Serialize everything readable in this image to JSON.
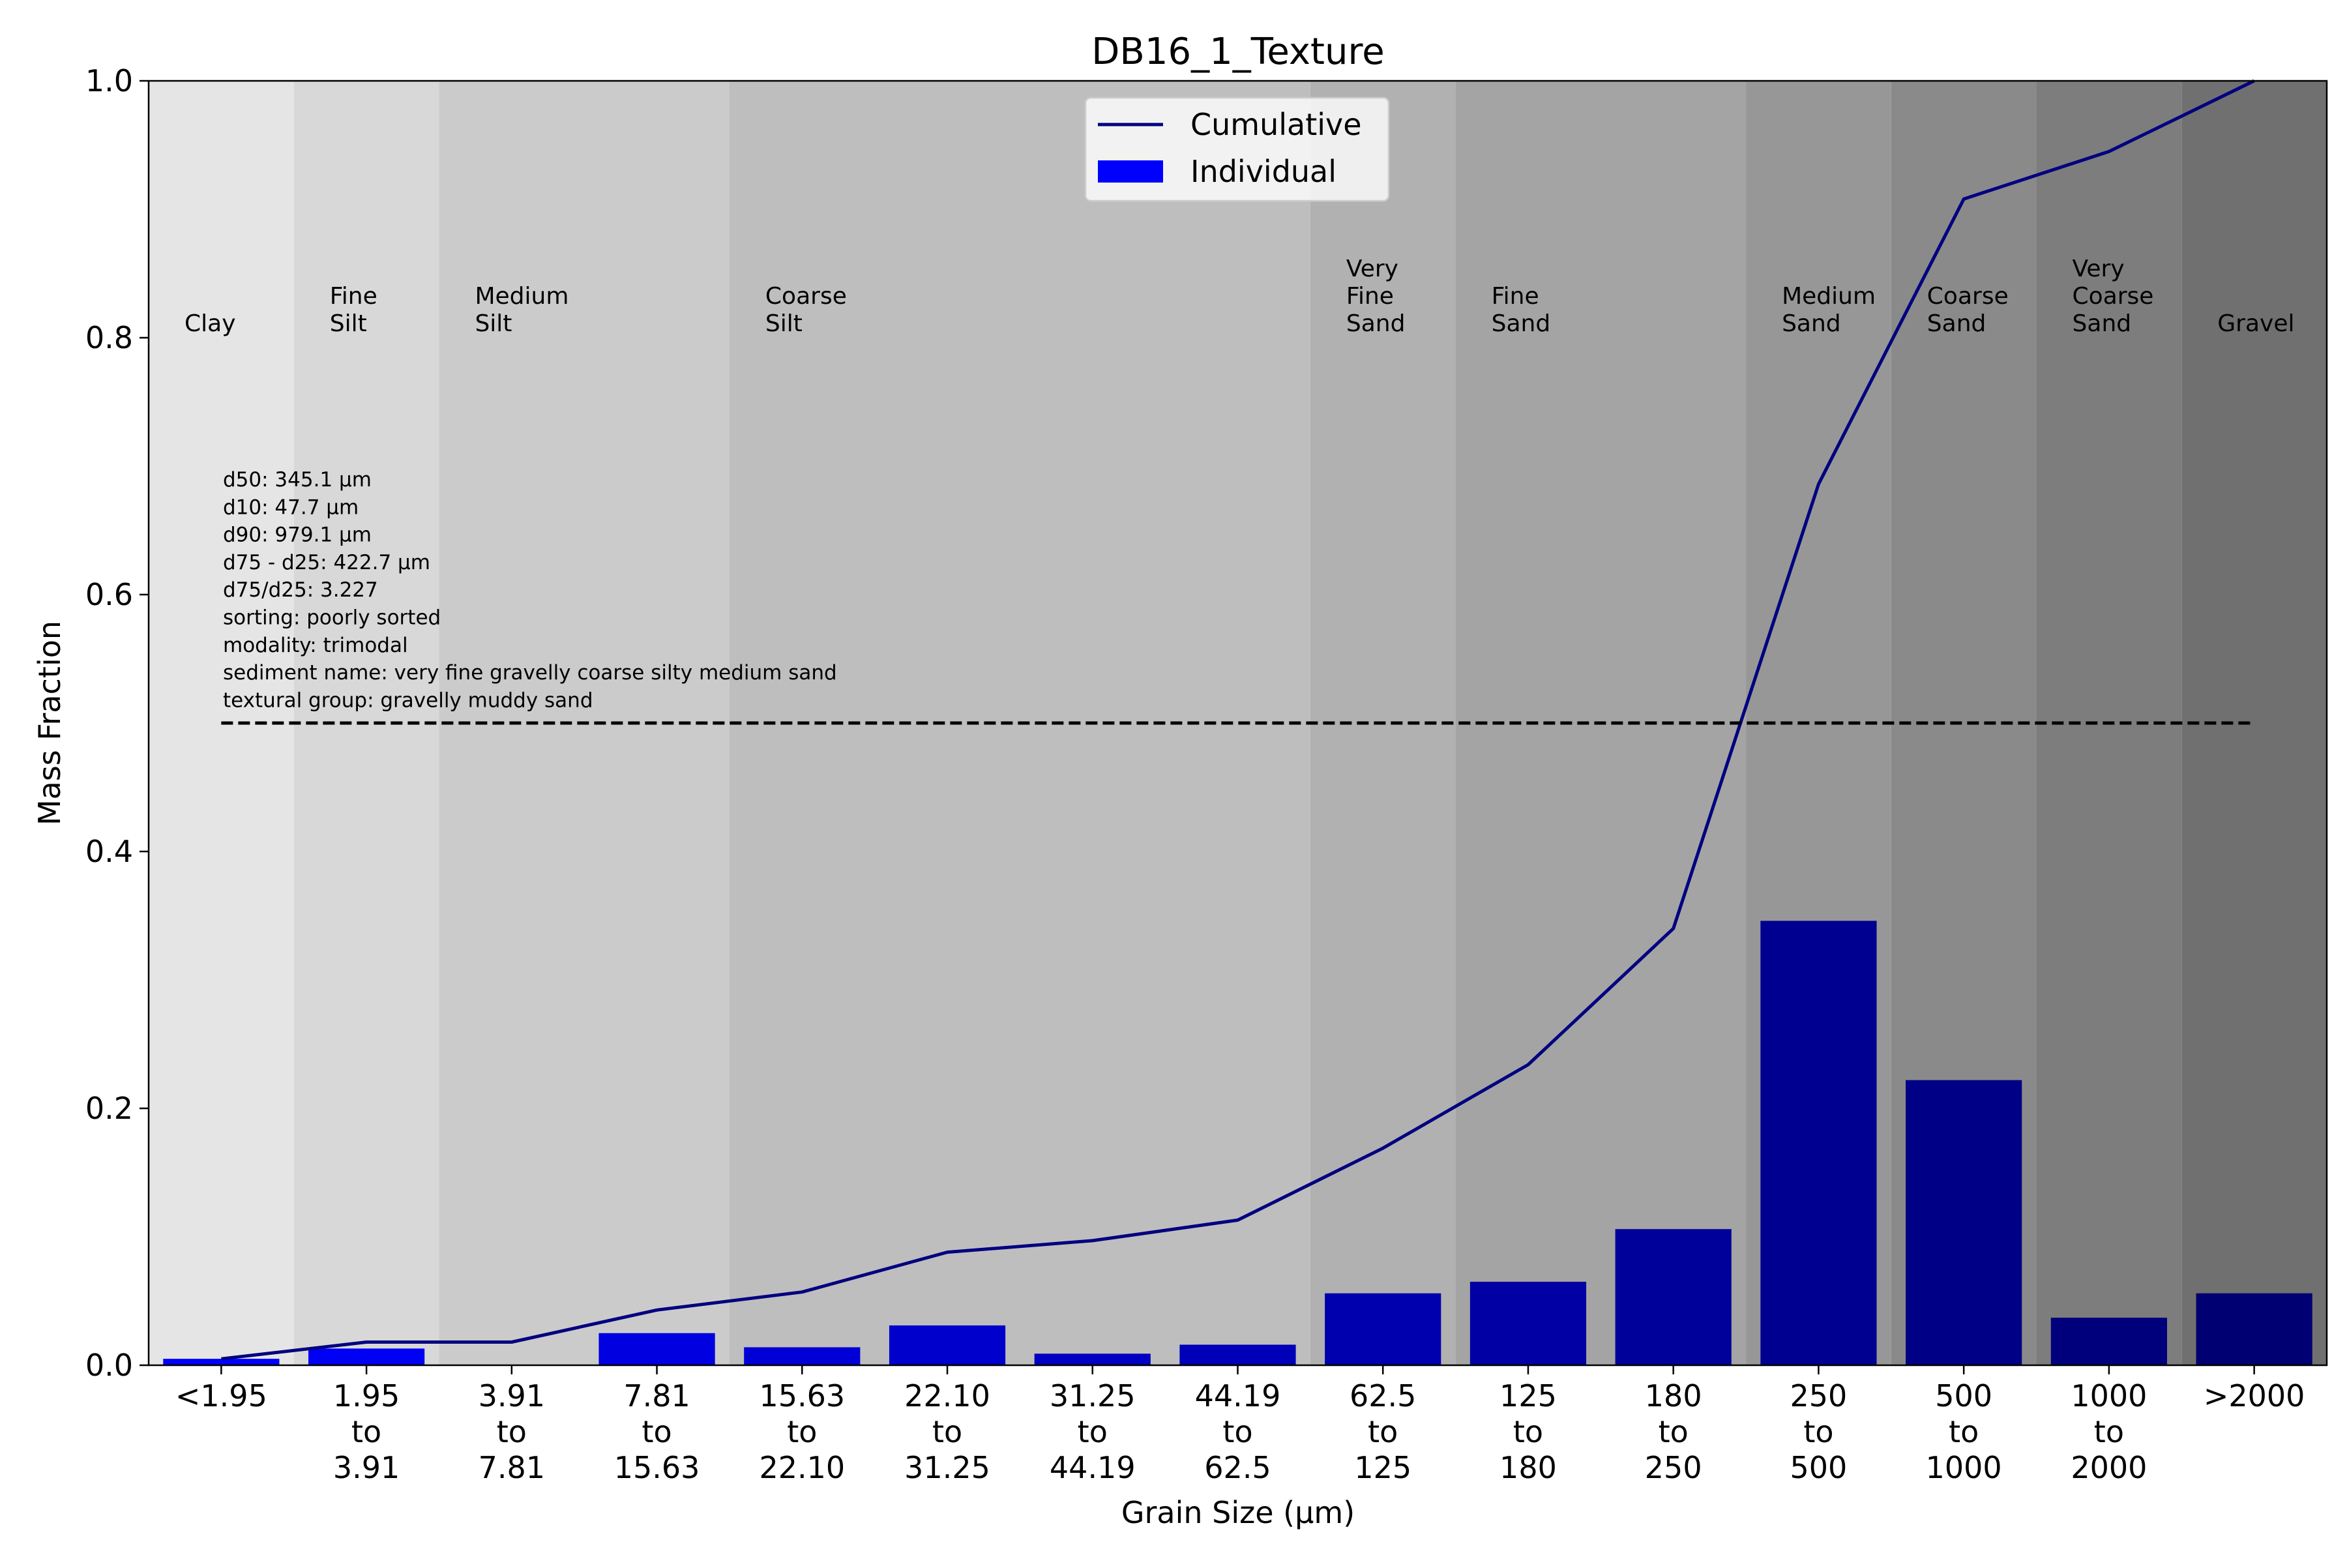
{
  "chart_data": {
    "type": "bar",
    "title": "DB16_1_Texture",
    "xlabel": "Grain Size (μm)",
    "ylabel": "Mass Fraction",
    "ylim": [
      0,
      1
    ],
    "yticks": [
      "0.0",
      "0.2",
      "0.4",
      "0.6",
      "0.8",
      "1.0"
    ],
    "categories": [
      [
        "<1.95"
      ],
      [
        "1.95",
        "to",
        "3.91"
      ],
      [
        "3.91",
        "to",
        "7.81"
      ],
      [
        "7.81",
        "to",
        "15.63"
      ],
      [
        "15.63",
        "to",
        "22.10"
      ],
      [
        "22.10",
        "to",
        "31.25"
      ],
      [
        "31.25",
        "to",
        "44.19"
      ],
      [
        "44.19",
        "to",
        "62.5"
      ],
      [
        "62.5",
        "to",
        "125"
      ],
      [
        "125",
        "to",
        "180"
      ],
      [
        "180",
        "to",
        "250"
      ],
      [
        "250",
        "to",
        "500"
      ],
      [
        "500",
        "to",
        "1000"
      ],
      [
        "1000",
        "to",
        "2000"
      ],
      [
        ">2000"
      ]
    ],
    "series": [
      {
        "name": "Individual",
        "kind": "bar",
        "values": [
          0.005,
          0.013,
          0.0,
          0.025,
          0.014,
          0.031,
          0.009,
          0.016,
          0.056,
          0.065,
          0.106,
          0.346,
          0.222,
          0.037,
          0.056
        ],
        "colors": [
          "#0000ff",
          "#0000f4",
          "#0000ea",
          "#0000e0",
          "#0000d6",
          "#0000cc",
          "#0000c2",
          "#0000b8",
          "#0000ae",
          "#0000a4",
          "#00009a",
          "#000090",
          "#000086",
          "#00007c",
          "#000072"
        ]
      },
      {
        "name": "Cumulative",
        "kind": "line",
        "color": "#000080",
        "values": [
          0.005,
          0.018,
          0.018,
          0.043,
          0.057,
          0.088,
          0.097,
          0.113,
          0.169,
          0.234,
          0.34,
          0.686,
          0.908,
          0.945,
          1.0
        ]
      }
    ],
    "reference_line": {
      "y": 0.5,
      "style": "dashed",
      "color": "#000000"
    },
    "legend": {
      "position": "top-center",
      "entries": [
        {
          "label": "Cumulative",
          "kind": "line",
          "color": "#000080"
        },
        {
          "label": "Individual",
          "kind": "patch",
          "color": "#0000ff"
        }
      ]
    },
    "bands": [
      {
        "lines": [
          "Clay"
        ],
        "from": 0,
        "to": 1,
        "color": "#e5e5e5"
      },
      {
        "lines": [
          "Fine",
          "Silt"
        ],
        "from": 1,
        "to": 2,
        "color": "#d8d8d8"
      },
      {
        "lines": [
          "Medium",
          "Silt"
        ],
        "from": 2,
        "to": 4,
        "color": "#cbcbcb"
      },
      {
        "lines": [
          "Coarse",
          "Silt"
        ],
        "from": 4,
        "to": 8,
        "color": "#bebebe"
      },
      {
        "lines": [
          "Very",
          "Fine",
          "Sand"
        ],
        "from": 8,
        "to": 9,
        "color": "#b1b1b1"
      },
      {
        "lines": [
          "Fine",
          "Sand"
        ],
        "from": 9,
        "to": 11,
        "color": "#a4a4a4"
      },
      {
        "lines": [
          "Medium",
          "Sand"
        ],
        "from": 11,
        "to": 12,
        "color": "#979797"
      },
      {
        "lines": [
          "Coarse",
          "Sand"
        ],
        "from": 12,
        "to": 13,
        "color": "#8a8a8a"
      },
      {
        "lines": [
          "Very",
          "Coarse",
          "Sand"
        ],
        "from": 13,
        "to": 14,
        "color": "#7d7d7d"
      },
      {
        "lines": [
          "Gravel"
        ],
        "from": 14,
        "to": 15,
        "color": "#707070"
      }
    ],
    "stats": [
      "d50: 345.1 μm",
      "d10: 47.7 μm",
      "d90: 979.1 μm",
      "d75 - d25: 422.7 μm",
      "d75/d25: 3.227",
      "sorting: poorly sorted",
      "modality: trimodal",
      "sediment name: very fine gravelly coarse silty medium sand",
      "textural group: gravelly muddy sand"
    ]
  }
}
